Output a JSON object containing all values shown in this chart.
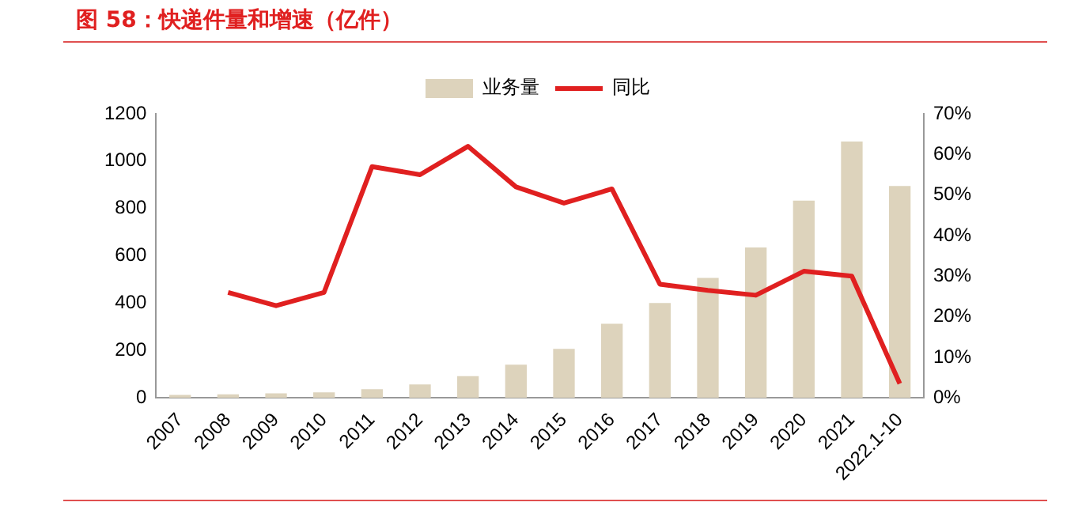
{
  "chart_data": {
    "type": "bar",
    "title": "图 58：快递件量和增速（亿件）",
    "categories": [
      "2007",
      "2008",
      "2009",
      "2010",
      "2011",
      "2012",
      "2013",
      "2014",
      "2015",
      "2016",
      "2017",
      "2018",
      "2019",
      "2020",
      "2021",
      "2022.1-10"
    ],
    "series": [
      {
        "name": "业务量",
        "color": "#ddd3bc",
        "values": [
          12,
          15,
          19,
          23,
          37,
          57,
          92,
          140,
          207,
          313,
          401,
          507,
          635,
          833,
          1083,
          895
        ]
      },
      {
        "name": "同比",
        "type": "line",
        "axis": "y2",
        "color": "#e02020",
        "values": [
          null,
          26,
          22.7,
          26,
          57,
          55,
          62,
          52,
          48,
          51.5,
          28,
          26.5,
          25.3,
          31.2,
          30,
          3.5
        ]
      }
    ],
    "ylim": [
      0,
      1200
    ],
    "yticks": [
      0,
      200,
      400,
      600,
      800,
      1000,
      1200
    ],
    "y2lim": [
      0,
      70
    ],
    "y2ticks": [
      {
        "value": 0,
        "label": "0%"
      },
      {
        "value": 10,
        "label": "10%"
      },
      {
        "value": 20,
        "label": "20%"
      },
      {
        "value": 30,
        "label": "30%"
      },
      {
        "value": 40,
        "label": "40%"
      },
      {
        "value": 50,
        "label": "50%"
      },
      {
        "value": 60,
        "label": "60%"
      },
      {
        "value": 70,
        "label": "70%"
      }
    ],
    "grid": false,
    "legend": "top",
    "marker": "none"
  }
}
